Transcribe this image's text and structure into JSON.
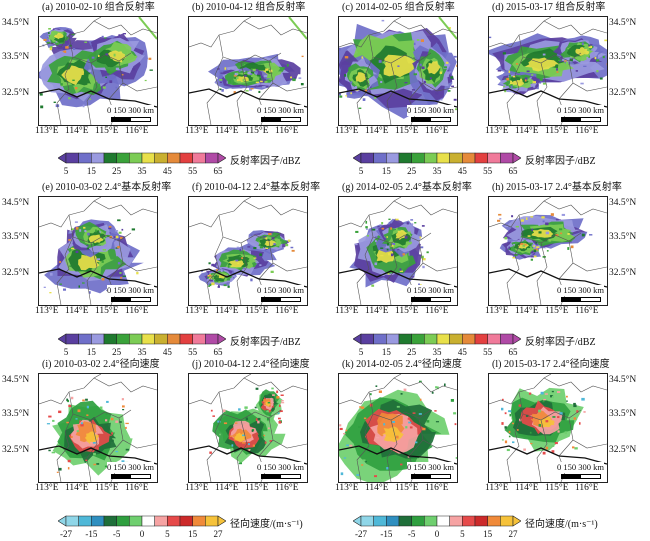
{
  "panels": [
    {
      "title": "(a) 2010-02-10 组合反射率",
      "kind": "refl",
      "pattern": "a"
    },
    {
      "title": "(b) 2010-04-12 组合反射率",
      "kind": "refl",
      "pattern": "b"
    },
    {
      "title": "(c) 2014-02-05 组合反射率",
      "kind": "refl",
      "pattern": "c"
    },
    {
      "title": "(d) 2015-03-17 组合反射率",
      "kind": "refl",
      "pattern": "d"
    },
    {
      "title": "(e) 2010-03-02 2.4°基本反射率",
      "kind": "refl",
      "pattern": "e"
    },
    {
      "title": "(f) 2010-04-12 2.4°基本反射率",
      "kind": "refl",
      "pattern": "f"
    },
    {
      "title": "(g) 2014-02-05 2.4°基本反射率",
      "kind": "refl",
      "pattern": "g"
    },
    {
      "title": "(h) 2015-03-17 2.4°基本反射率",
      "kind": "refl",
      "pattern": "h"
    },
    {
      "title": "(i) 2010-03-02 2.4°径向速度",
      "kind": "vel",
      "pattern": "i"
    },
    {
      "title": "(j) 2010-04-12 2.4°径向速度",
      "kind": "vel",
      "pattern": "j"
    },
    {
      "title": "(k) 2014-02-05 2.4°径向速度",
      "kind": "vel",
      "pattern": "k"
    },
    {
      "title": "(l) 2015-03-17 2.4°径向速度",
      "kind": "vel",
      "pattern": "l"
    }
  ],
  "axes": {
    "lon_labels": [
      "113°E",
      "114°E",
      "115°E",
      "116°E"
    ],
    "lat_labels": [
      "34.5°N",
      "33.5°N",
      "32.5°N"
    ]
  },
  "scale_bar": {
    "label": "0  150 300 km"
  },
  "colorbars": {
    "reflectivity": {
      "label_rf": "反射率因子/dBZ",
      "ticks": [
        "5",
        "15",
        "25",
        "35",
        "45",
        "55",
        "65"
      ],
      "colors": [
        "#5a3fa0",
        "#6f6fc9",
        "#9a9ae0",
        "#1f7a2f",
        "#3aa23a",
        "#7ccc55",
        "#e8e04a",
        "#c9b030",
        "#e58a3a",
        "#e34040",
        "#f07a9a",
        "#b04aa6"
      ]
    },
    "velocity": {
      "label": "径向速度/(m·s⁻¹)",
      "ticks": [
        "-27",
        "-15",
        "-5",
        "0",
        "5",
        "15",
        "27"
      ],
      "colors": [
        "#8fd6e8",
        "#4fb8d8",
        "#2f8fc0",
        "#1f6f3a",
        "#2f9f3f",
        "#6fcf6f",
        "#ffffff",
        "#f6a3a3",
        "#e64a4a",
        "#cc2a2a",
        "#f08a3a",
        "#f6c23a"
      ]
    }
  }
}
